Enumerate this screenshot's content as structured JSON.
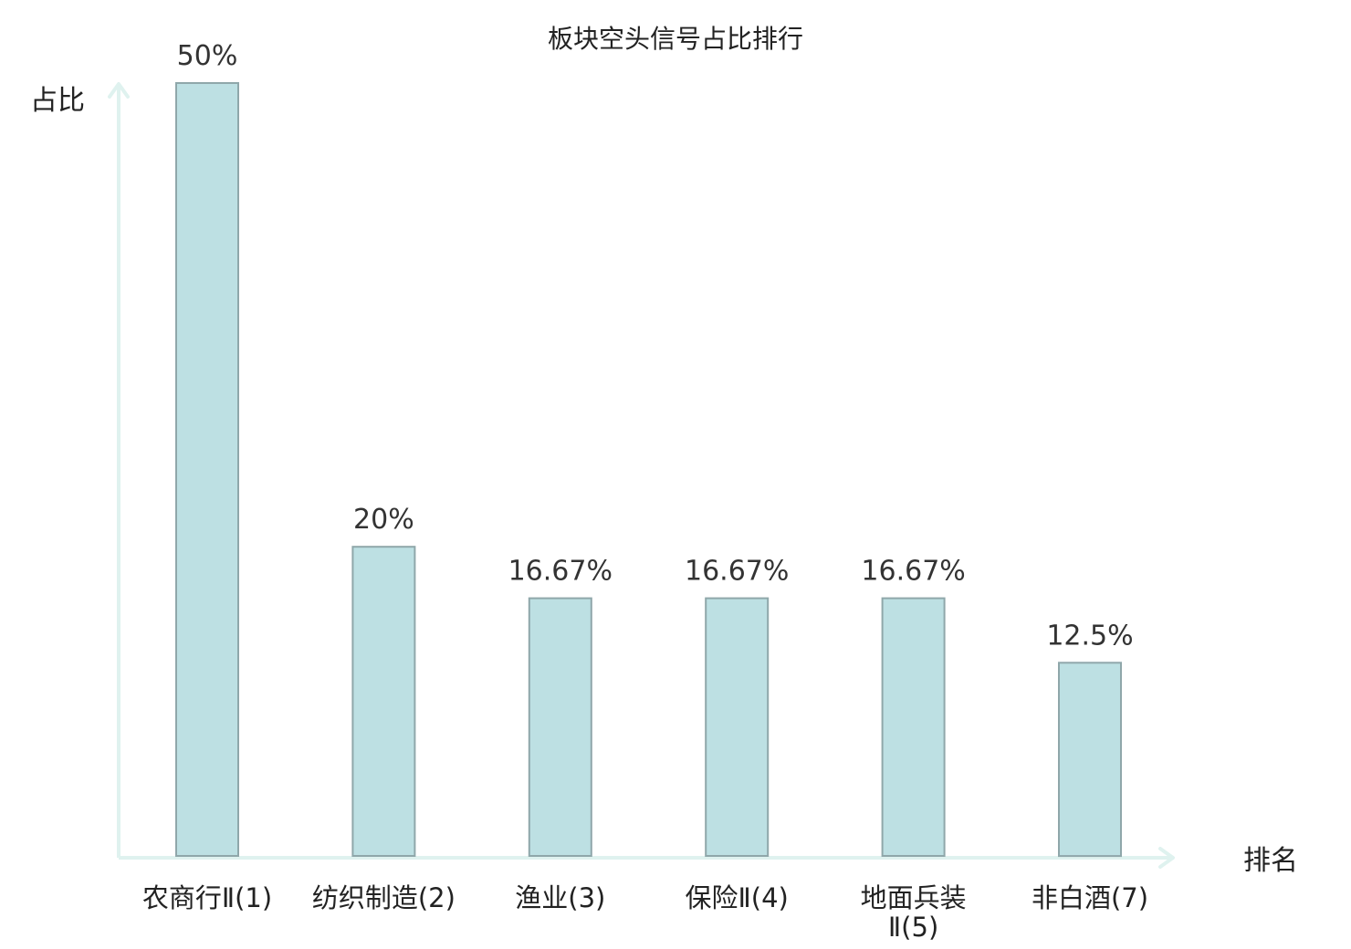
{
  "chart_data": {
    "type": "bar",
    "title": "板块空头信号占比排行",
    "ylabel": "占比",
    "xlabel": "排名",
    "categories": [
      "农商行Ⅱ(1)",
      "纺织制造(2)",
      "渔业(3)",
      "保险Ⅱ(4)",
      "地面兵装Ⅱ(5)",
      "非白酒(7)"
    ],
    "values": [
      50,
      20,
      16.67,
      16.67,
      16.67,
      12.5
    ],
    "value_labels": [
      "50%",
      "20%",
      "16.67%",
      "16.67%",
      "16.67%",
      "12.5%"
    ],
    "highlight_index": 5,
    "ylim": [
      0,
      50
    ],
    "grid": false,
    "colors": {
      "bar_fill": "#bde0e3",
      "bar_stroke": "#8fa7aa",
      "axis": "#dff2ef",
      "text": "#222222",
      "highlight_text": "#d42020"
    }
  }
}
